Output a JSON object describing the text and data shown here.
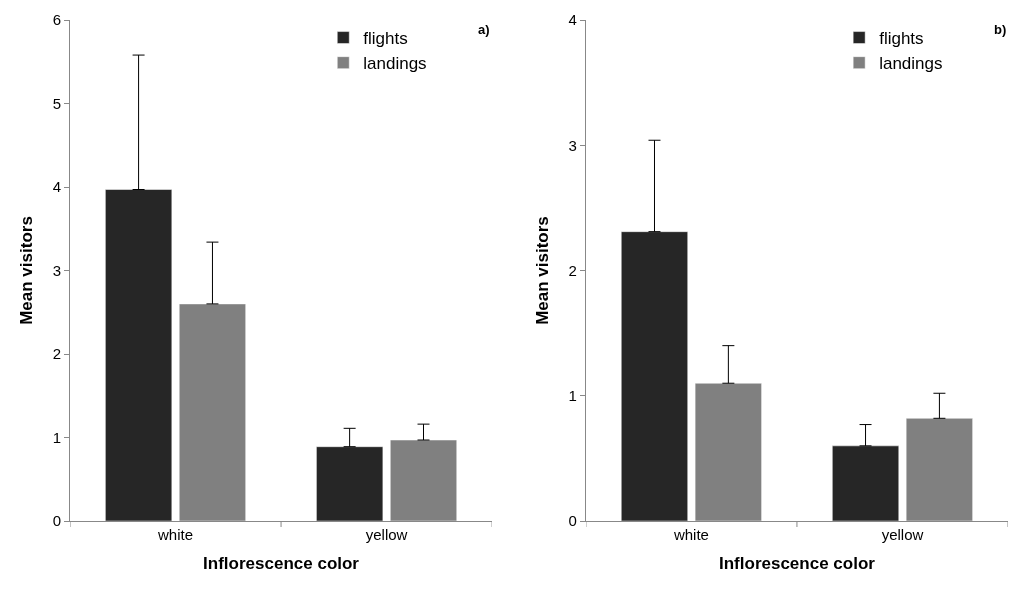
{
  "chart_data": [
    {
      "type": "bar",
      "xlabel": "Inflorescence color",
      "ylabel": "Mean visitors",
      "annotations": [
        "a)"
      ],
      "categories": [
        "white",
        "yellow"
      ],
      "ylim": [
        0,
        6
      ],
      "yticks": [
        0,
        1,
        2,
        3,
        4,
        5,
        6
      ],
      "grid": false,
      "legend": "top right",
      "series": [
        {
          "name": "flights",
          "color": "#262626",
          "values": [
            3.97,
            0.89
          ],
          "errors": [
            [
              3.97,
              5.58
            ],
            [
              0.89,
              1.11
            ]
          ]
        },
        {
          "name": "landings",
          "color": "#808080",
          "values": [
            2.6,
            0.97
          ],
          "errors": [
            [
              2.6,
              3.34
            ],
            [
              0.97,
              1.16
            ]
          ]
        }
      ]
    },
    {
      "type": "bar",
      "xlabel": "Inflorescence color",
      "ylabel": "Mean visitors",
      "annotations": [
        "b)"
      ],
      "categories": [
        "white",
        "yellow"
      ],
      "ylim": [
        0,
        4
      ],
      "yticks": [
        0,
        1,
        2,
        3,
        4
      ],
      "grid": false,
      "legend": "top right",
      "series": [
        {
          "name": "flights",
          "color": "#262626",
          "values": [
            2.31,
            0.6
          ],
          "errors": [
            [
              2.31,
              3.04
            ],
            [
              0.6,
              0.77
            ]
          ]
        },
        {
          "name": "landings",
          "color": "#808080",
          "values": [
            1.1,
            0.82
          ],
          "errors": [
            [
              1.1,
              1.4
            ],
            [
              0.82,
              1.02
            ]
          ]
        }
      ]
    }
  ]
}
